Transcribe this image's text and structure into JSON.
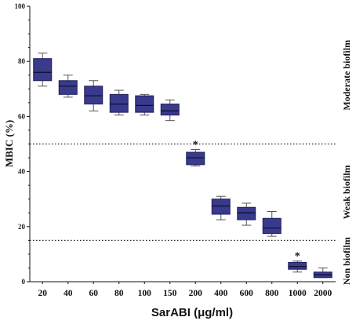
{
  "chart_data": {
    "type": "box",
    "ylabel": "MBIC (%)",
    "xlabel": "SarABI (μg/ml)",
    "ylim": [
      0,
      100
    ],
    "yticks": [
      "0",
      "20",
      "40",
      "60",
      "80",
      "100"
    ],
    "categories": [
      "20",
      "40",
      "60",
      "80",
      "100",
      "150",
      "200",
      "400",
      "600",
      "800",
      "1000",
      "2000"
    ],
    "boxes": [
      {
        "min": 71,
        "q1": 73,
        "median": 76,
        "q3": 81,
        "max": 83
      },
      {
        "min": 67,
        "q1": 68,
        "median": 71,
        "q3": 73,
        "max": 75
      },
      {
        "min": 62,
        "q1": 64.5,
        "median": 67.5,
        "q3": 71,
        "max": 73
      },
      {
        "min": 60.5,
        "q1": 61.5,
        "median": 64.5,
        "q3": 68,
        "max": 69.5
      },
      {
        "min": 60.5,
        "q1": 61.5,
        "median": 64,
        "q3": 67.5,
        "max": 68
      },
      {
        "min": 58.5,
        "q1": 60.5,
        "median": 62,
        "q3": 64.5,
        "max": 66
      },
      {
        "min": 42,
        "q1": 42.5,
        "median": 45,
        "q3": 47,
        "max": 48
      },
      {
        "min": 22.5,
        "q1": 24.5,
        "median": 27.5,
        "q3": 30,
        "max": 31
      },
      {
        "min": 20.5,
        "q1": 22.5,
        "median": 25,
        "q3": 27,
        "max": 28.5
      },
      {
        "min": 16.5,
        "q1": 17.5,
        "median": 19.5,
        "q3": 23,
        "max": 25.5
      },
      {
        "min": 3.5,
        "q1": 4.5,
        "median": 5.5,
        "q3": 7,
        "max": 7.5
      },
      {
        "min": 1.5,
        "q1": 1.5,
        "median": 2.5,
        "q3": 3.5,
        "max": 5
      }
    ],
    "thresholds": [
      50,
      15
    ],
    "annotations": [
      {
        "category": "200",
        "text": "*"
      },
      {
        "category": "1000",
        "text": "*"
      }
    ],
    "zones": [
      {
        "label": "Moderate biofilm",
        "ymin": 50,
        "ymax": 100
      },
      {
        "label": "Weak biofilm",
        "ymin": 15,
        "ymax": 50
      },
      {
        "label": "Non biofilm",
        "ymin": 0,
        "ymax": 15
      }
    ],
    "box_fill": "#3a3a8c",
    "box_stroke": "#1e1e5a",
    "grid": false,
    "legend": "none"
  }
}
